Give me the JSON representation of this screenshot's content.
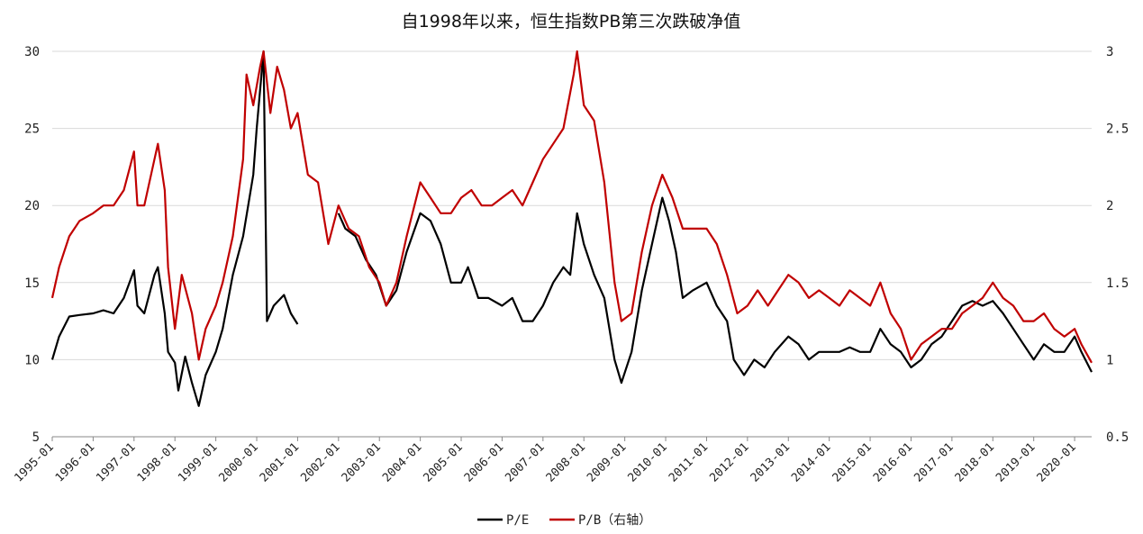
{
  "chart_data": {
    "type": "line",
    "title": "自1998年以来，恒生指数PB第三次跌破净值",
    "x_range": [
      "1995-01",
      "2020-06"
    ],
    "left_axis": {
      "ylim": [
        5,
        30
      ],
      "ticks": [
        "5",
        "10",
        "15",
        "20",
        "25",
        "30"
      ]
    },
    "right_axis": {
      "ylim": [
        0.5,
        3
      ],
      "ticks": [
        "0.5",
        "1",
        "1.5",
        "2",
        "2.5",
        "3"
      ]
    },
    "x_ticks": [
      "1995-01",
      "1996-01",
      "1997-01",
      "1998-01",
      "1999-01",
      "2000-01",
      "2001-01",
      "2002-01",
      "2003-01",
      "2004-01",
      "2005-01",
      "2006-01",
      "2007-01",
      "2008-01",
      "2009-01",
      "2010-01",
      "2011-01",
      "2012-01",
      "2013-01",
      "2014-01",
      "2015-01",
      "2016-01",
      "2017-01",
      "2018-01",
      "2019-01",
      "2020-01"
    ],
    "legend": {
      "placement": "bottom-center"
    },
    "series": [
      {
        "name": "P/E",
        "axis": "left",
        "color": "#000000",
        "points": [
          [
            "1995-01",
            10.0
          ],
          [
            "1995-03",
            11.5
          ],
          [
            "1995-06",
            12.8
          ],
          [
            "1995-09",
            12.9
          ],
          [
            "1996-01",
            13.0
          ],
          [
            "1996-04",
            13.2
          ],
          [
            "1996-07",
            13.0
          ],
          [
            "1996-10",
            14.0
          ],
          [
            "1997-01",
            15.8
          ],
          [
            "1997-02",
            13.5
          ],
          [
            "1997-04",
            13.0
          ],
          [
            "1997-07",
            15.5
          ],
          [
            "1997-08",
            16.0
          ],
          [
            "1997-10",
            13.0
          ],
          [
            "1997-11",
            10.5
          ],
          [
            "1998-01",
            9.8
          ],
          [
            "1998-02",
            8.0
          ],
          [
            "1998-04",
            10.2
          ],
          [
            "1998-06",
            8.5
          ],
          [
            "1998-08",
            7.0
          ],
          [
            "1998-10",
            9.0
          ],
          [
            "1999-01",
            10.5
          ],
          [
            "1999-03",
            12.0
          ],
          [
            "1999-06",
            15.5
          ],
          [
            "1999-09",
            18.0
          ],
          [
            "1999-12",
            22.0
          ],
          [
            "2000-01",
            25.0
          ],
          [
            "2000-02",
            27.5
          ],
          [
            "2000-03",
            30.0
          ],
          [
            "2000-04",
            12.5
          ],
          [
            "2000-06",
            13.5
          ],
          [
            "2000-09",
            14.2
          ],
          [
            "2000-11",
            13.0
          ],
          [
            "2001-01",
            12.3
          ]
        ]
      },
      {
        "name": "P/E",
        "axis": "left",
        "color": "#000000",
        "points": [
          [
            "2002-01",
            19.5
          ],
          [
            "2002-03",
            18.5
          ],
          [
            "2002-06",
            18.0
          ],
          [
            "2002-09",
            16.5
          ],
          [
            "2002-12",
            15.5
          ],
          [
            "2003-03",
            13.5
          ],
          [
            "2003-06",
            14.5
          ],
          [
            "2003-09",
            17.0
          ],
          [
            "2004-01",
            19.5
          ],
          [
            "2004-04",
            19.0
          ],
          [
            "2004-07",
            17.5
          ],
          [
            "2004-10",
            15.0
          ],
          [
            "2005-01",
            15.0
          ],
          [
            "2005-03",
            16.0
          ],
          [
            "2005-06",
            14.0
          ],
          [
            "2005-09",
            14.0
          ],
          [
            "2006-01",
            13.5
          ],
          [
            "2006-04",
            14.0
          ],
          [
            "2006-07",
            12.5
          ],
          [
            "2006-10",
            12.5
          ],
          [
            "2007-01",
            13.5
          ],
          [
            "2007-04",
            15.0
          ],
          [
            "2007-07",
            16.0
          ],
          [
            "2007-09",
            15.5
          ],
          [
            "2007-11",
            19.5
          ],
          [
            "2008-01",
            17.5
          ],
          [
            "2008-04",
            15.5
          ],
          [
            "2008-07",
            14.0
          ],
          [
            "2008-10",
            10.0
          ],
          [
            "2008-12",
            8.5
          ],
          [
            "2009-03",
            10.5
          ],
          [
            "2009-06",
            14.5
          ],
          [
            "2009-09",
            17.5
          ],
          [
            "2009-12",
            20.5
          ],
          [
            "2010-02",
            19.0
          ],
          [
            "2010-04",
            17.0
          ],
          [
            "2010-06",
            14.0
          ],
          [
            "2010-09",
            14.5
          ],
          [
            "2011-01",
            15.0
          ],
          [
            "2011-04",
            13.5
          ],
          [
            "2011-07",
            12.5
          ],
          [
            "2011-09",
            10.0
          ],
          [
            "2011-12",
            9.0
          ],
          [
            "2012-03",
            10.0
          ],
          [
            "2012-06",
            9.5
          ],
          [
            "2012-09",
            10.5
          ],
          [
            "2013-01",
            11.5
          ],
          [
            "2013-04",
            11.0
          ],
          [
            "2013-07",
            10.0
          ],
          [
            "2013-10",
            10.5
          ],
          [
            "2014-01",
            10.5
          ],
          [
            "2014-04",
            10.5
          ],
          [
            "2014-07",
            10.8
          ],
          [
            "2014-10",
            10.5
          ],
          [
            "2015-01",
            10.5
          ],
          [
            "2015-04",
            12.0
          ],
          [
            "2015-07",
            11.0
          ],
          [
            "2015-10",
            10.5
          ],
          [
            "2016-01",
            9.5
          ],
          [
            "2016-04",
            10.0
          ],
          [
            "2016-07",
            11.0
          ],
          [
            "2016-10",
            11.5
          ],
          [
            "2017-01",
            12.5
          ],
          [
            "2017-04",
            13.5
          ],
          [
            "2017-07",
            13.8
          ],
          [
            "2017-10",
            13.5
          ],
          [
            "2018-01",
            13.8
          ],
          [
            "2018-04",
            13.0
          ],
          [
            "2018-07",
            12.0
          ],
          [
            "2018-10",
            11.0
          ],
          [
            "2019-01",
            10.0
          ],
          [
            "2019-04",
            11.0
          ],
          [
            "2019-07",
            10.5
          ],
          [
            "2019-10",
            10.5
          ],
          [
            "2020-01",
            11.5
          ],
          [
            "2020-03",
            10.5
          ],
          [
            "2020-06",
            9.2
          ]
        ]
      },
      {
        "name": "P/B（右轴）",
        "axis": "right",
        "color": "#c00000",
        "points": [
          [
            "1995-01",
            1.4
          ],
          [
            "1995-03",
            1.6
          ],
          [
            "1995-06",
            1.8
          ],
          [
            "1995-09",
            1.9
          ],
          [
            "1996-01",
            1.95
          ],
          [
            "1996-04",
            2.0
          ],
          [
            "1996-07",
            2.0
          ],
          [
            "1996-10",
            2.1
          ],
          [
            "1997-01",
            2.35
          ],
          [
            "1997-02",
            2.0
          ],
          [
            "1997-04",
            2.0
          ],
          [
            "1997-07",
            2.3
          ],
          [
            "1997-08",
            2.4
          ],
          [
            "1997-10",
            2.1
          ],
          [
            "1997-11",
            1.6
          ],
          [
            "1998-01",
            1.2
          ],
          [
            "1998-03",
            1.55
          ],
          [
            "1998-06",
            1.3
          ],
          [
            "1998-08",
            1.0
          ],
          [
            "1998-10",
            1.2
          ],
          [
            "1999-01",
            1.35
          ],
          [
            "1999-03",
            1.5
          ],
          [
            "1999-06",
            1.8
          ],
          [
            "1999-09",
            2.3
          ],
          [
            "1999-10",
            2.85
          ],
          [
            "1999-12",
            2.65
          ],
          [
            "2000-02",
            2.9
          ],
          [
            "2000-03",
            3.0
          ],
          [
            "2000-05",
            2.6
          ],
          [
            "2000-07",
            2.9
          ],
          [
            "2000-09",
            2.75
          ],
          [
            "2000-11",
            2.5
          ],
          [
            "2001-01",
            2.6
          ],
          [
            "2001-04",
            2.2
          ],
          [
            "2001-07",
            2.15
          ],
          [
            "2001-10",
            1.75
          ],
          [
            "2002-01",
            2.0
          ],
          [
            "2002-04",
            1.85
          ],
          [
            "2002-07",
            1.8
          ],
          [
            "2002-10",
            1.6
          ],
          [
            "2003-01",
            1.5
          ],
          [
            "2003-03",
            1.35
          ],
          [
            "2003-06",
            1.5
          ],
          [
            "2003-09",
            1.8
          ],
          [
            "2004-01",
            2.15
          ],
          [
            "2004-04",
            2.05
          ],
          [
            "2004-07",
            1.95
          ],
          [
            "2004-10",
            1.95
          ],
          [
            "2005-01",
            2.05
          ],
          [
            "2005-04",
            2.1
          ],
          [
            "2005-07",
            2.0
          ],
          [
            "2005-10",
            2.0
          ],
          [
            "2006-01",
            2.05
          ],
          [
            "2006-04",
            2.1
          ],
          [
            "2006-07",
            2.0
          ],
          [
            "2006-10",
            2.15
          ],
          [
            "2007-01",
            2.3
          ],
          [
            "2007-04",
            2.4
          ],
          [
            "2007-07",
            2.5
          ],
          [
            "2007-10",
            2.85
          ],
          [
            "2007-11",
            3.0
          ],
          [
            "2008-01",
            2.65
          ],
          [
            "2008-04",
            2.55
          ],
          [
            "2008-07",
            2.15
          ],
          [
            "2008-10",
            1.5
          ],
          [
            "2008-12",
            1.25
          ],
          [
            "2009-03",
            1.3
          ],
          [
            "2009-06",
            1.7
          ],
          [
            "2009-09",
            2.0
          ],
          [
            "2009-12",
            2.2
          ],
          [
            "2010-03",
            2.05
          ],
          [
            "2010-06",
            1.85
          ],
          [
            "2010-09",
            1.85
          ],
          [
            "2011-01",
            1.85
          ],
          [
            "2011-04",
            1.75
          ],
          [
            "2011-07",
            1.55
          ],
          [
            "2011-10",
            1.3
          ],
          [
            "2012-01",
            1.35
          ],
          [
            "2012-04",
            1.45
          ],
          [
            "2012-07",
            1.35
          ],
          [
            "2012-10",
            1.45
          ],
          [
            "2013-01",
            1.55
          ],
          [
            "2013-04",
            1.5
          ],
          [
            "2013-07",
            1.4
          ],
          [
            "2013-10",
            1.45
          ],
          [
            "2014-01",
            1.4
          ],
          [
            "2014-04",
            1.35
          ],
          [
            "2014-07",
            1.45
          ],
          [
            "2014-10",
            1.4
          ],
          [
            "2015-01",
            1.35
          ],
          [
            "2015-04",
            1.5
          ],
          [
            "2015-07",
            1.3
          ],
          [
            "2015-10",
            1.2
          ],
          [
            "2016-01",
            1.0
          ],
          [
            "2016-04",
            1.1
          ],
          [
            "2016-07",
            1.15
          ],
          [
            "2016-10",
            1.2
          ],
          [
            "2017-01",
            1.2
          ],
          [
            "2017-04",
            1.3
          ],
          [
            "2017-07",
            1.35
          ],
          [
            "2017-10",
            1.4
          ],
          [
            "2018-01",
            1.5
          ],
          [
            "2018-04",
            1.4
          ],
          [
            "2018-07",
            1.35
          ],
          [
            "2018-10",
            1.25
          ],
          [
            "2019-01",
            1.25
          ],
          [
            "2019-04",
            1.3
          ],
          [
            "2019-07",
            1.2
          ],
          [
            "2019-10",
            1.15
          ],
          [
            "2020-01",
            1.2
          ],
          [
            "2020-03",
            1.1
          ],
          [
            "2020-06",
            0.98
          ]
        ]
      }
    ],
    "legend_entries": [
      {
        "label": "P/E",
        "color": "#000000"
      },
      {
        "label": "P/B（右轴）",
        "color": "#c00000"
      }
    ]
  }
}
